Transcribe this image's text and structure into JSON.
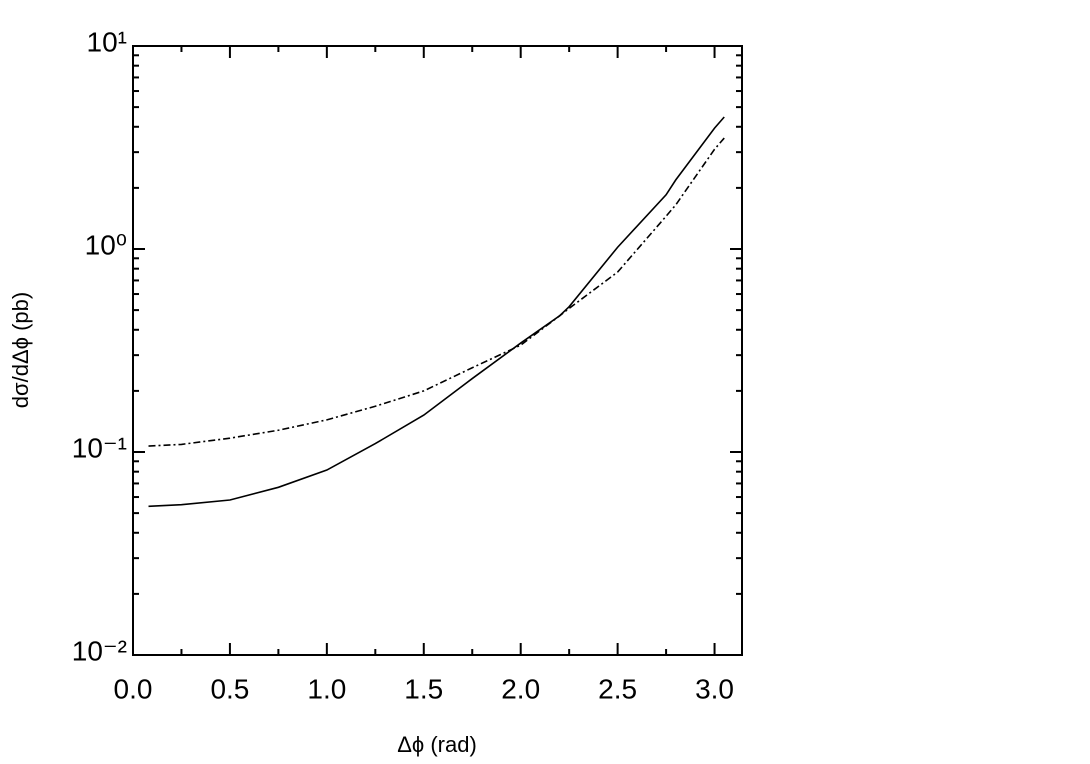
{
  "chart_data": {
    "type": "line",
    "xlabel": "Δϕ (rad)",
    "ylabel": "dσ/dΔϕ (pb)",
    "log_y": true,
    "xlim": [
      0,
      3.1416
    ],
    "ylim": [
      0.01,
      10
    ],
    "xticks": [
      {
        "value": 0,
        "label": "0.0"
      },
      {
        "value": 0.5,
        "label": "0.5"
      },
      {
        "value": 1,
        "label": "1.0"
      },
      {
        "value": 1.5,
        "label": "1.5"
      },
      {
        "value": 2,
        "label": "2.0"
      },
      {
        "value": 2.5,
        "label": "2.5"
      },
      {
        "value": 3,
        "label": "3.0"
      }
    ],
    "xminorticks": [
      0.25,
      0.75,
      1.25,
      1.75,
      2.25,
      2.75
    ],
    "yticks": [
      {
        "value": 0.01,
        "label": "10⁻²"
      },
      {
        "value": 0.1,
        "label": "10⁻¹"
      },
      {
        "value": 1,
        "label": "10⁰"
      },
      {
        "value": 10,
        "label": "10¹"
      }
    ],
    "yminorticks": [
      0.02,
      0.03,
      0.04,
      0.05,
      0.06,
      0.07,
      0.08,
      0.09,
      0.2,
      0.3,
      0.4,
      0.5,
      0.6,
      0.7,
      0.8,
      0.9,
      2,
      3,
      4,
      5,
      6,
      7,
      8,
      9
    ],
    "x": [
      0.08,
      0.25,
      0.5,
      0.75,
      1.0,
      1.25,
      1.5,
      1.75,
      2.0,
      2.2,
      2.25,
      2.5,
      2.75,
      2.8,
      3.0,
      3.05
    ],
    "series": [
      {
        "color": "#000000",
        "style": "solid",
        "values": [
          0.054,
          0.055,
          0.058,
          0.067,
          0.0815,
          0.11,
          0.152,
          0.23,
          0.344,
          0.468,
          0.52,
          1.02,
          1.85,
          2.19,
          3.94,
          4.47
        ]
      },
      {
        "color": "#000000",
        "style": "dashdot",
        "values": [
          0.107,
          0.109,
          0.117,
          0.128,
          0.144,
          0.168,
          0.2,
          0.26,
          0.336,
          0.468,
          0.51,
          0.77,
          1.45,
          1.65,
          3.1,
          3.52
        ]
      }
    ]
  }
}
